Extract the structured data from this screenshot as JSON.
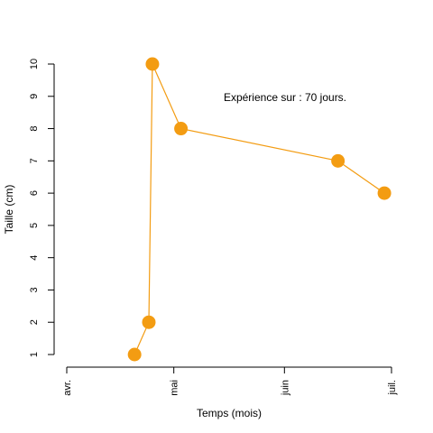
{
  "chart_data": {
    "type": "line",
    "title": "",
    "xlabel": "Temps (mois)",
    "ylabel": "Taille (cm)",
    "annotation": "Expérience sur :  70  jours.",
    "x_ticks": [
      {
        "label": "avr.",
        "date": "2024-04-01"
      },
      {
        "label": "mai",
        "date": "2024-05-01"
      },
      {
        "label": "juin",
        "date": "2024-06-01"
      },
      {
        "label": "juil.",
        "date": "2024-07-01"
      }
    ],
    "y_ticks": [
      1,
      2,
      3,
      4,
      5,
      6,
      7,
      8,
      9,
      10
    ],
    "xlim": [
      "2024-04-01",
      "2024-07-01"
    ],
    "ylim": [
      1,
      10
    ],
    "grid": false,
    "series": [
      {
        "color": "#f39c12",
        "points": [
          {
            "date": "2024-04-20",
            "y": 1
          },
          {
            "date": "2024-04-24",
            "y": 2
          },
          {
            "date": "2024-04-25",
            "y": 10
          },
          {
            "date": "2024-05-03",
            "y": 8
          },
          {
            "date": "2024-06-16",
            "y": 7
          },
          {
            "date": "2024-06-29",
            "y": 6
          }
        ]
      }
    ]
  }
}
